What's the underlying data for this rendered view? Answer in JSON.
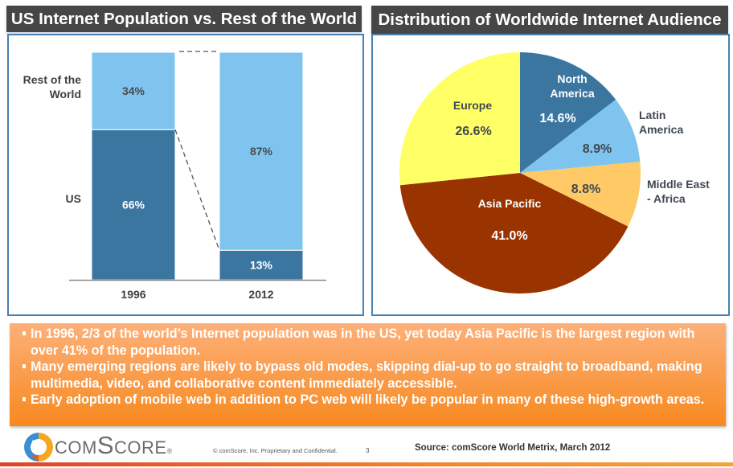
{
  "left_title": "US Internet Population vs. Rest of the World",
  "right_title": "Distribution of Worldwide Internet Audience",
  "chart_data": [
    {
      "type": "bar",
      "stacked": true,
      "title": "US Internet Population vs. Rest of the World",
      "categories": [
        "1996",
        "2012"
      ],
      "series": [
        {
          "name": "US",
          "label": "US",
          "values": [
            66,
            13
          ],
          "color": "#3b76a1",
          "label_color": "#ffffff"
        },
        {
          "name": "Rest of the World",
          "label_lines": [
            "Rest of the",
            "World"
          ],
          "values": [
            34,
            87
          ],
          "color": "#7ec4ef",
          "label_color": "#4a4a4a"
        }
      ],
      "data_labels": [
        [
          "66%",
          "13%"
        ],
        [
          "34%",
          "87%"
        ]
      ],
      "ylim": [
        0,
        100
      ],
      "xlabel": "",
      "ylabel": "",
      "grid": false,
      "connector_lines": "dashed"
    },
    {
      "type": "pie",
      "title": "Distribution of Worldwide Internet Audience",
      "slices": [
        {
          "name": "North America",
          "label_lines": [
            "North",
            "America"
          ],
          "value": 14.6,
          "display": "14.6%",
          "color": "#3b76a1",
          "text_color": "#ffffff",
          "label_outside": false
        },
        {
          "name": "Latin America",
          "label_lines": [
            "Latin",
            "America"
          ],
          "value": 8.9,
          "display": "8.9%",
          "color": "#7ec4ef",
          "text_color": "#404852",
          "label_outside": true
        },
        {
          "name": "Middle East - Africa",
          "label_lines": [
            "Middle East",
            "- Africa"
          ],
          "value": 8.8,
          "display": "8.8%",
          "color": "#ffca66",
          "text_color": "#404852",
          "label_outside": true
        },
        {
          "name": "Asia Pacific",
          "label_lines": [
            "Asia Pacific"
          ],
          "value": 41.0,
          "display": "41.0%",
          "color": "#993300",
          "text_color": "#ffffff",
          "label_outside": false
        },
        {
          "name": "Europe",
          "label_lines": [
            "Europe"
          ],
          "value": 26.6,
          "display": "26.6%",
          "color": "#ffff66",
          "text_color": "#404852",
          "label_outside": false
        }
      ],
      "start": "12 o'clock",
      "direction": "clockwise"
    }
  ],
  "callout": {
    "bullets": [
      "In 1996, 2/3 of the world’s Internet population was in the US, yet today Asia Pacific is the largest region with over 41% of the population.",
      "Many emerging regions are likely to bypass old modes, skipping dial-up to go straight to broadband, making multimedia, video, and collaborative content immediately accessible.",
      "Early adoption of mobile web in addition to PC web will likely be popular in many of these high-growth areas."
    ]
  },
  "footer": {
    "logo_text": "comScore",
    "logo_mark": "®",
    "copyright": "© comScore, Inc.  Proprietary and Confidential.",
    "page_number": "3",
    "source": "Source:  comScore World Metrix, March 2012"
  },
  "colors": {
    "title_bar": "#464646",
    "panel_border": "#4a7fb0",
    "callout_top": "#fdb07a",
    "callout_bottom": "#f7891f"
  }
}
